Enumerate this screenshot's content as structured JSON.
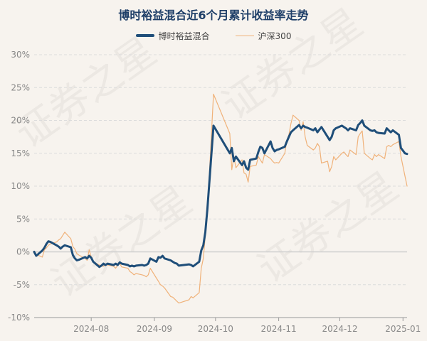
{
  "chart_data": {
    "type": "line",
    "title": "博时裕益混合近6个月累计收益率走势",
    "xlabel": "",
    "ylabel": "",
    "ylim": [
      -10,
      30
    ],
    "yticks": [
      -10,
      -5,
      0,
      5,
      10,
      15,
      20,
      25,
      30
    ],
    "ytick_labels": [
      "-10%",
      "-5%",
      "0%",
      "5%",
      "10%",
      "15%",
      "20%",
      "25%",
      "30%"
    ],
    "xlim": [
      "2024-07-04",
      "2025-01-03"
    ],
    "xticks": [
      "2024-08-01",
      "2024-09-01",
      "2024-10-01",
      "2024-11-01",
      "2024-12-01",
      "2025-01-01"
    ],
    "xtick_labels": [
      "2024-08",
      "2024-09",
      "2024-10",
      "2024-11",
      "2024-12",
      "2025-01"
    ],
    "grid": "horizontal-dashed",
    "legend_position": "top-center",
    "watermark": "证券之星",
    "series": [
      {
        "name": "博时裕益混合",
        "color": "#1f4e79",
        "points": [
          [
            "2024-07-04",
            0
          ],
          [
            "2024-07-05",
            -0.6
          ],
          [
            "2024-07-08",
            0.2
          ],
          [
            "2024-07-09",
            0.6
          ],
          [
            "2024-07-10",
            1.2
          ],
          [
            "2024-07-11",
            1.6
          ],
          [
            "2024-07-12",
            1.5
          ],
          [
            "2024-07-15",
            1.0
          ],
          [
            "2024-07-16",
            0.8
          ],
          [
            "2024-07-17",
            0.5
          ],
          [
            "2024-07-18",
            0.8
          ],
          [
            "2024-07-19",
            1.0
          ],
          [
            "2024-07-22",
            0.7
          ],
          [
            "2024-07-23",
            -0.5
          ],
          [
            "2024-07-24",
            -1.0
          ],
          [
            "2024-07-25",
            -1.3
          ],
          [
            "2024-07-26",
            -1.2
          ],
          [
            "2024-07-29",
            -0.8
          ],
          [
            "2024-07-30",
            -1.0
          ],
          [
            "2024-07-31",
            -0.6
          ],
          [
            "2024-08-01",
            -0.9
          ],
          [
            "2024-08-02",
            -1.5
          ],
          [
            "2024-08-05",
            -2.3
          ],
          [
            "2024-08-06",
            -2.1
          ],
          [
            "2024-08-07",
            -1.8
          ],
          [
            "2024-08-08",
            -2.0
          ],
          [
            "2024-08-09",
            -1.8
          ],
          [
            "2024-08-12",
            -2.0
          ],
          [
            "2024-08-13",
            -1.8
          ],
          [
            "2024-08-14",
            -2.0
          ],
          [
            "2024-08-15",
            -1.6
          ],
          [
            "2024-08-16",
            -1.8
          ],
          [
            "2024-08-19",
            -2.0
          ],
          [
            "2024-08-20",
            -2.2
          ],
          [
            "2024-08-21",
            -2.1
          ],
          [
            "2024-08-22",
            -2.2
          ],
          [
            "2024-08-23",
            -2.1
          ],
          [
            "2024-08-26",
            -2.0
          ],
          [
            "2024-08-27",
            -2.1
          ],
          [
            "2024-08-28",
            -2.0
          ],
          [
            "2024-08-29",
            -1.8
          ],
          [
            "2024-08-30",
            -1.0
          ],
          [
            "2024-09-02",
            -1.5
          ],
          [
            "2024-09-03",
            -0.8
          ],
          [
            "2024-09-04",
            -0.9
          ],
          [
            "2024-09-05",
            -0.6
          ],
          [
            "2024-09-06",
            -1.0
          ],
          [
            "2024-09-09",
            -1.3
          ],
          [
            "2024-09-10",
            -1.5
          ],
          [
            "2024-09-11",
            -1.7
          ],
          [
            "2024-09-12",
            -1.8
          ],
          [
            "2024-09-13",
            -2.1
          ],
          [
            "2024-09-18",
            -1.9
          ],
          [
            "2024-09-19",
            -2.0
          ],
          [
            "2024-09-20",
            -2.2
          ],
          [
            "2024-09-23",
            -1.5
          ],
          [
            "2024-09-24",
            0.2
          ],
          [
            "2024-09-25",
            1.0
          ],
          [
            "2024-09-26",
            3.0
          ],
          [
            "2024-09-27",
            6.5
          ],
          [
            "2024-09-30",
            19.2
          ],
          [
            "2024-10-08",
            15.0
          ],
          [
            "2024-10-09",
            15.8
          ],
          [
            "2024-10-10",
            13.8
          ],
          [
            "2024-10-11",
            14.5
          ],
          [
            "2024-10-14",
            13.2
          ],
          [
            "2024-10-15",
            13.8
          ],
          [
            "2024-10-16",
            12.8
          ],
          [
            "2024-10-17",
            12.5
          ],
          [
            "2024-10-18",
            14.0
          ],
          [
            "2024-10-21",
            14.2
          ],
          [
            "2024-10-22",
            15.2
          ],
          [
            "2024-10-23",
            16.0
          ],
          [
            "2024-10-24",
            15.8
          ],
          [
            "2024-10-25",
            15.0
          ],
          [
            "2024-10-28",
            16.8
          ],
          [
            "2024-10-29",
            15.8
          ],
          [
            "2024-10-30",
            15.3
          ],
          [
            "2024-10-31",
            15.5
          ],
          [
            "2024-11-01",
            15.6
          ],
          [
            "2024-11-04",
            16.0
          ],
          [
            "2024-11-05",
            16.8
          ],
          [
            "2024-11-06",
            17.5
          ],
          [
            "2024-11-07",
            18.2
          ],
          [
            "2024-11-08",
            18.5
          ],
          [
            "2024-11-11",
            19.3
          ],
          [
            "2024-11-12",
            18.8
          ],
          [
            "2024-11-13",
            19.2
          ],
          [
            "2024-11-14",
            19.0
          ],
          [
            "2024-11-15",
            18.9
          ],
          [
            "2024-11-18",
            18.5
          ],
          [
            "2024-11-19",
            18.8
          ],
          [
            "2024-11-20",
            18.2
          ],
          [
            "2024-11-21",
            18.6
          ],
          [
            "2024-11-22",
            19.0
          ],
          [
            "2024-11-25",
            17.5
          ],
          [
            "2024-11-26",
            17.0
          ],
          [
            "2024-11-27",
            17.5
          ],
          [
            "2024-11-28",
            18.5
          ],
          [
            "2024-11-29",
            18.8
          ],
          [
            "2024-12-02",
            19.2
          ],
          [
            "2024-12-03",
            19.0
          ],
          [
            "2024-12-04",
            18.8
          ],
          [
            "2024-12-05",
            18.5
          ],
          [
            "2024-12-06",
            18.8
          ],
          [
            "2024-12-09",
            18.5
          ],
          [
            "2024-12-10",
            19.3
          ],
          [
            "2024-12-11",
            19.6
          ],
          [
            "2024-12-12",
            20.0
          ],
          [
            "2024-12-13",
            19.2
          ],
          [
            "2024-12-16",
            18.5
          ],
          [
            "2024-12-17",
            18.4
          ],
          [
            "2024-12-18",
            18.5
          ],
          [
            "2024-12-19",
            18.2
          ],
          [
            "2024-12-20",
            18.1
          ],
          [
            "2024-12-23",
            18.0
          ],
          [
            "2024-12-24",
            18.8
          ],
          [
            "2024-12-25",
            18.5
          ],
          [
            "2024-12-26",
            18.2
          ],
          [
            "2024-12-27",
            18.5
          ],
          [
            "2024-12-30",
            17.8
          ],
          [
            "2024-12-31",
            15.8
          ],
          [
            "2025-01-02",
            15.0
          ],
          [
            "2025-01-03",
            14.9
          ]
        ]
      },
      {
        "name": "沪深300",
        "color": "#f0b27a",
        "points": [
          [
            "2024-07-04",
            0
          ],
          [
            "2024-07-05",
            -0.4
          ],
          [
            "2024-07-08",
            -0.8
          ],
          [
            "2024-07-09",
            0.3
          ],
          [
            "2024-07-10",
            0.6
          ],
          [
            "2024-07-11",
            1.0
          ],
          [
            "2024-07-12",
            1.2
          ],
          [
            "2024-07-15",
            1.5
          ],
          [
            "2024-07-16",
            1.8
          ],
          [
            "2024-07-17",
            2.0
          ],
          [
            "2024-07-18",
            2.5
          ],
          [
            "2024-07-19",
            3.0
          ],
          [
            "2024-07-22",
            2.0
          ],
          [
            "2024-07-23",
            0.8
          ],
          [
            "2024-07-24",
            0.4
          ],
          [
            "2024-07-25",
            -0.3
          ],
          [
            "2024-07-26",
            -0.5
          ],
          [
            "2024-07-29",
            -1.0
          ],
          [
            "2024-07-30",
            -1.3
          ],
          [
            "2024-07-31",
            0.3
          ],
          [
            "2024-08-01",
            -0.8
          ],
          [
            "2024-08-02",
            -1.5
          ],
          [
            "2024-08-05",
            -2.0
          ],
          [
            "2024-08-06",
            -2.1
          ],
          [
            "2024-08-07",
            -2.2
          ],
          [
            "2024-08-08",
            -1.9
          ],
          [
            "2024-08-09",
            -2.0
          ],
          [
            "2024-08-12",
            -2.2
          ],
          [
            "2024-08-13",
            -2.5
          ],
          [
            "2024-08-14",
            -2.0
          ],
          [
            "2024-08-15",
            -1.8
          ],
          [
            "2024-08-16",
            -2.3
          ],
          [
            "2024-08-19",
            -2.5
          ],
          [
            "2024-08-20",
            -3.0
          ],
          [
            "2024-08-21",
            -3.2
          ],
          [
            "2024-08-22",
            -3.5
          ],
          [
            "2024-08-23",
            -3.3
          ],
          [
            "2024-08-26",
            -3.5
          ],
          [
            "2024-08-27",
            -3.6
          ],
          [
            "2024-08-28",
            -3.8
          ],
          [
            "2024-08-29",
            -3.5
          ],
          [
            "2024-08-30",
            -2.5
          ],
          [
            "2024-09-02",
            -4.0
          ],
          [
            "2024-09-03",
            -4.5
          ],
          [
            "2024-09-04",
            -5.0
          ],
          [
            "2024-09-05",
            -5.2
          ],
          [
            "2024-09-06",
            -5.5
          ],
          [
            "2024-09-09",
            -6.8
          ],
          [
            "2024-09-10",
            -6.9
          ],
          [
            "2024-09-11",
            -7.2
          ],
          [
            "2024-09-12",
            -7.5
          ],
          [
            "2024-09-13",
            -7.8
          ],
          [
            "2024-09-18",
            -7.3
          ],
          [
            "2024-09-19",
            -6.8
          ],
          [
            "2024-09-20",
            -7.0
          ],
          [
            "2024-09-23",
            -6.2
          ],
          [
            "2024-09-24",
            -2.5
          ],
          [
            "2024-09-25",
            -1.0
          ],
          [
            "2024-09-26",
            2.5
          ],
          [
            "2024-09-27",
            6.0
          ],
          [
            "2024-09-30",
            24.0
          ],
          [
            "2024-10-08",
            18.0
          ],
          [
            "2024-10-09",
            12.5
          ],
          [
            "2024-10-10",
            14.5
          ],
          [
            "2024-10-11",
            12.8
          ],
          [
            "2024-10-14",
            14.0
          ],
          [
            "2024-10-15",
            12.0
          ],
          [
            "2024-10-16",
            11.8
          ],
          [
            "2024-10-17",
            10.6
          ],
          [
            "2024-10-18",
            13.0
          ],
          [
            "2024-10-21",
            13.2
          ],
          [
            "2024-10-22",
            14.5
          ],
          [
            "2024-10-23",
            14.0
          ],
          [
            "2024-10-24",
            13.5
          ],
          [
            "2024-10-25",
            14.8
          ],
          [
            "2024-10-28",
            14.2
          ],
          [
            "2024-10-29",
            13.8
          ],
          [
            "2024-10-30",
            13.5
          ],
          [
            "2024-10-31",
            13.6
          ],
          [
            "2024-11-01",
            13.5
          ],
          [
            "2024-11-04",
            15.0
          ],
          [
            "2024-11-05",
            17.0
          ],
          [
            "2024-11-06",
            17.8
          ],
          [
            "2024-11-07",
            19.5
          ],
          [
            "2024-11-08",
            20.8
          ],
          [
            "2024-11-11",
            20.0
          ],
          [
            "2024-11-12",
            18.5
          ],
          [
            "2024-11-13",
            19.8
          ],
          [
            "2024-11-14",
            17.5
          ],
          [
            "2024-11-15",
            16.2
          ],
          [
            "2024-11-18",
            15.5
          ],
          [
            "2024-11-19",
            15.8
          ],
          [
            "2024-11-20",
            16.5
          ],
          [
            "2024-11-21",
            16.0
          ],
          [
            "2024-11-22",
            13.5
          ],
          [
            "2024-11-25",
            13.8
          ],
          [
            "2024-11-26",
            12.2
          ],
          [
            "2024-11-27",
            13.0
          ],
          [
            "2024-11-28",
            14.5
          ],
          [
            "2024-11-29",
            14.0
          ],
          [
            "2024-12-02",
            15.0
          ],
          [
            "2024-12-03",
            15.2
          ],
          [
            "2024-12-04",
            14.8
          ],
          [
            "2024-12-05",
            14.5
          ],
          [
            "2024-12-06",
            15.5
          ],
          [
            "2024-12-09",
            14.8
          ],
          [
            "2024-12-10",
            17.5
          ],
          [
            "2024-12-11",
            18.0
          ],
          [
            "2024-12-12",
            18.4
          ],
          [
            "2024-12-13",
            15.0
          ],
          [
            "2024-12-16",
            14.2
          ],
          [
            "2024-12-17",
            14.0
          ],
          [
            "2024-12-18",
            14.8
          ],
          [
            "2024-12-19",
            14.5
          ],
          [
            "2024-12-20",
            14.8
          ],
          [
            "2024-12-23",
            14.2
          ],
          [
            "2024-12-24",
            16.0
          ],
          [
            "2024-12-25",
            16.2
          ],
          [
            "2024-12-26",
            16.0
          ],
          [
            "2024-12-27",
            16.3
          ],
          [
            "2024-12-30",
            16.8
          ],
          [
            "2024-12-31",
            14.5
          ],
          [
            "2025-01-02",
            11.5
          ],
          [
            "2025-01-03",
            10.0
          ]
        ]
      }
    ]
  }
}
